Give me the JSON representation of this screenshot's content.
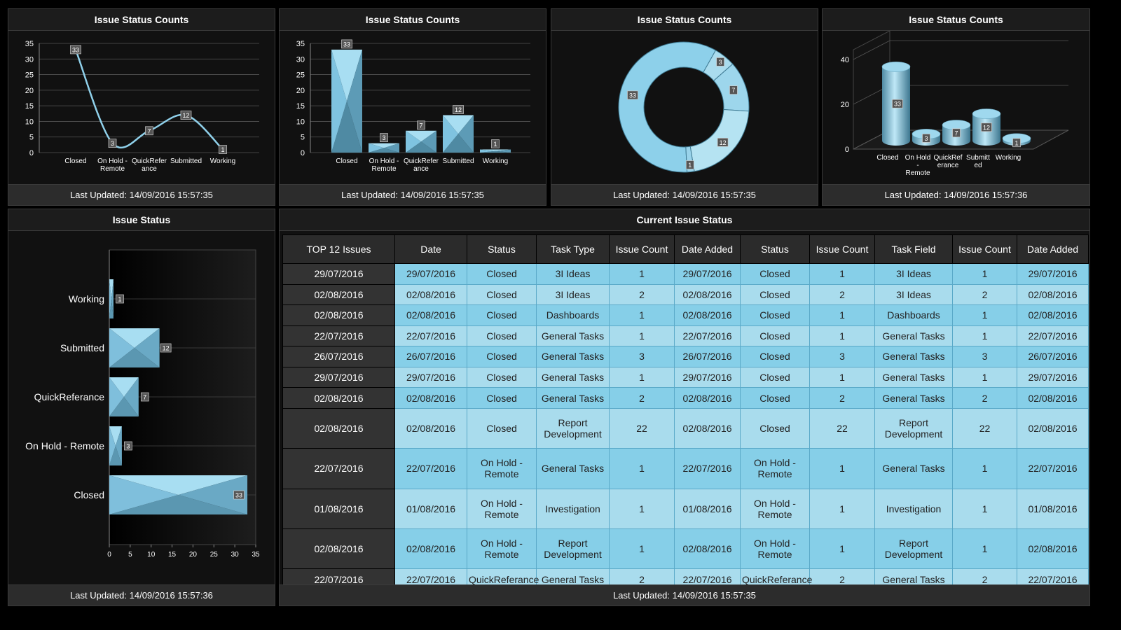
{
  "panels": {
    "p1": {
      "title": "Issue Status Counts",
      "footer": "Last Updated: 14/09/2016 15:57:35"
    },
    "p2": {
      "title": "Issue Status Counts",
      "footer": "Last Updated: 14/09/2016 15:57:35"
    },
    "p3": {
      "title": "Issue Status Counts",
      "footer": "Last Updated: 14/09/2016 15:57:35"
    },
    "p4": {
      "title": "Issue Status Counts",
      "footer": "Last Updated: 14/09/2016 15:57:36"
    },
    "p5": {
      "title": "Issue Status",
      "footer": "Last Updated: 14/09/2016 15:57:36"
    },
    "p6": {
      "title": "Current Issue Status",
      "footer": "Last Updated: 14/09/2016 15:57:35"
    }
  },
  "colors": {
    "accent": "#87ceeb",
    "accent_dark": "#5b8ea6",
    "background": "#000000",
    "panel": "#111111"
  },
  "chart_data": [
    {
      "type": "line",
      "categories": [
        "Closed",
        "On Hold - Remote",
        "QuickReferance",
        "Submitted",
        "Working"
      ],
      "category_labels": [
        [
          "Closed"
        ],
        [
          "On Hold -",
          "Remote"
        ],
        [
          "QuickRefer",
          "ance"
        ],
        [
          "Submitted"
        ],
        [
          "Working"
        ]
      ],
      "values": [
        33,
        3,
        7,
        12,
        1
      ],
      "ylim": [
        0,
        35
      ],
      "yticks": [
        0,
        5,
        10,
        15,
        20,
        25,
        30,
        35
      ],
      "grid": true
    },
    {
      "type": "bar",
      "categories": [
        "Closed",
        "On Hold - Remote",
        "QuickReferance",
        "Submitted",
        "Working"
      ],
      "category_labels": [
        [
          "Closed"
        ],
        [
          "On Hold -",
          "Remote"
        ],
        [
          "QuickRefer",
          "ance"
        ],
        [
          "Submitted"
        ],
        [
          "Working"
        ]
      ],
      "values": [
        33,
        3,
        7,
        12,
        1
      ],
      "ylim": [
        0,
        35
      ],
      "yticks": [
        0,
        5,
        10,
        15,
        20,
        25,
        30,
        35
      ],
      "grid": true
    },
    {
      "type": "pie",
      "categories": [
        "Closed",
        "On Hold - Remote",
        "QuickReferance",
        "Submitted",
        "Working"
      ],
      "values": [
        33,
        3,
        7,
        12,
        1
      ]
    },
    {
      "type": "bar",
      "categories": [
        "Closed",
        "On Hold - Remote",
        "QuickReferance",
        "Submitted",
        "Working"
      ],
      "category_labels": [
        [
          "Closed"
        ],
        [
          "On Hold",
          "-",
          "Remote"
        ],
        [
          "QuickRef",
          "erance"
        ],
        [
          "Submitt",
          "ed"
        ],
        [
          "Working"
        ]
      ],
      "values": [
        33,
        3,
        7,
        12,
        1
      ],
      "ylim": [
        0,
        40
      ],
      "yticks": [
        0,
        20,
        40
      ],
      "grid": true
    },
    {
      "type": "bar",
      "orientation": "horizontal",
      "categories": [
        "Working",
        "Submitted",
        "QuickReferance",
        "On Hold - Remote",
        "Closed"
      ],
      "values": [
        1,
        12,
        7,
        3,
        33
      ],
      "xlim": [
        0,
        35
      ],
      "xticks": [
        0,
        5,
        10,
        15,
        20,
        25,
        30,
        35
      ],
      "grid": true
    }
  ],
  "table": {
    "headers": [
      "TOP 12 Issues",
      "Date",
      "Status",
      "Task Type",
      "Issue Count",
      "Date Added",
      "Status",
      "Issue Count",
      "Task Field",
      "Issue Count",
      "Date Added"
    ],
    "rows": [
      [
        "29/07/2016",
        "29/07/2016",
        "Closed",
        "3I Ideas",
        "1",
        "29/07/2016",
        "Closed",
        "1",
        "3I Ideas",
        "1",
        "29/07/2016"
      ],
      [
        "02/08/2016",
        "02/08/2016",
        "Closed",
        "3I Ideas",
        "2",
        "02/08/2016",
        "Closed",
        "2",
        "3I Ideas",
        "2",
        "02/08/2016"
      ],
      [
        "02/08/2016",
        "02/08/2016",
        "Closed",
        "Dashboards",
        "1",
        "02/08/2016",
        "Closed",
        "1",
        "Dashboards",
        "1",
        "02/08/2016"
      ],
      [
        "22/07/2016",
        "22/07/2016",
        "Closed",
        "General Tasks",
        "1",
        "22/07/2016",
        "Closed",
        "1",
        "General Tasks",
        "1",
        "22/07/2016"
      ],
      [
        "26/07/2016",
        "26/07/2016",
        "Closed",
        "General Tasks",
        "3",
        "26/07/2016",
        "Closed",
        "3",
        "General Tasks",
        "3",
        "26/07/2016"
      ],
      [
        "29/07/2016",
        "29/07/2016",
        "Closed",
        "General Tasks",
        "1",
        "29/07/2016",
        "Closed",
        "1",
        "General Tasks",
        "1",
        "29/07/2016"
      ],
      [
        "02/08/2016",
        "02/08/2016",
        "Closed",
        "General Tasks",
        "2",
        "02/08/2016",
        "Closed",
        "2",
        "General Tasks",
        "2",
        "02/08/2016"
      ],
      [
        "02/08/2016",
        "02/08/2016",
        "Closed",
        "Report Development",
        "22",
        "02/08/2016",
        "Closed",
        "22",
        "Report Development",
        "22",
        "02/08/2016"
      ],
      [
        "22/07/2016",
        "22/07/2016",
        "On Hold - Remote",
        "General Tasks",
        "1",
        "22/07/2016",
        "On Hold - Remote",
        "1",
        "General Tasks",
        "1",
        "22/07/2016"
      ],
      [
        "01/08/2016",
        "01/08/2016",
        "On Hold - Remote",
        "Investigation",
        "1",
        "01/08/2016",
        "On Hold - Remote",
        "1",
        "Investigation",
        "1",
        "01/08/2016"
      ],
      [
        "02/08/2016",
        "02/08/2016",
        "On Hold - Remote",
        "Report Development",
        "1",
        "02/08/2016",
        "On Hold - Remote",
        "1",
        "Report Development",
        "1",
        "02/08/2016"
      ],
      [
        "22/07/2016",
        "22/07/2016",
        "QuickReferance",
        "General Tasks",
        "2",
        "22/07/2016",
        "QuickReferance",
        "2",
        "General Tasks",
        "2",
        "22/07/2016"
      ]
    ]
  }
}
